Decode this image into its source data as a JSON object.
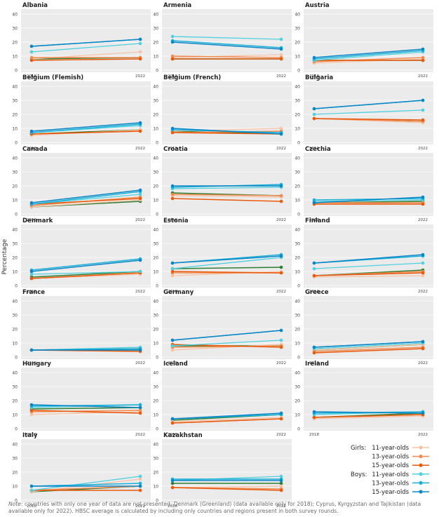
{
  "y_axis_label": "Percentage",
  "note": {
    "label": "Note",
    "text": ": countries with only one year of data are not presented: Denmark (Greenland) (data available only for 2018); Cyprus, Kyrgyzstan and Tajikistan (data available only for 2022). HBSC average is calculated by including only countries and regions present in both survey rounds."
  },
  "legend": [
    {
      "key": "g11",
      "prefix": "Girls:",
      "label": "11-year-olds",
      "color": "#f7c3a6"
    },
    {
      "key": "g13",
      "prefix": "",
      "label": "13-year-olds",
      "color": "#f28c52"
    },
    {
      "key": "g15",
      "prefix": "",
      "label": "15-year-olds",
      "color": "#e8590c"
    },
    {
      "key": "b11",
      "prefix": "Boys:",
      "label": "11-year-olds",
      "color": "#4fd0e0"
    },
    {
      "key": "b13",
      "prefix": "",
      "label": "13-year-olds",
      "color": "#18b0d8"
    },
    {
      "key": "b15",
      "prefix": "",
      "label": "15-year-olds",
      "color": "#0a86c6"
    }
  ],
  "avg_color": "#2e7d32",
  "chart_data": {
    "type": "line",
    "layout": "small multiples by country",
    "x": [
      "2018",
      "2022"
    ],
    "ylim": [
      0,
      40
    ],
    "yticks": [
      0,
      10,
      20,
      30,
      40
    ],
    "ylabel": "Percentage",
    "grid": true,
    "legend_position": "bottom-right",
    "panels": [
      {
        "title": "Albania",
        "series": {
          "g11": [
            8,
            13
          ],
          "g13": [
            9,
            9
          ],
          "g15": [
            7,
            8
          ],
          "b11": [
            13,
            19
          ],
          "b13": [
            17,
            22
          ],
          "b15": [
            17,
            22
          ],
          "avg": [
            8,
            9
          ]
        }
      },
      {
        "title": "Armenia",
        "series": {
          "g11": [
            9,
            11
          ],
          "g13": [
            10,
            9
          ],
          "g15": [
            8,
            8
          ],
          "b11": [
            24,
            22
          ],
          "b13": [
            21,
            16
          ],
          "b15": [
            20,
            15
          ],
          "avg": [
            8,
            8
          ]
        }
      },
      {
        "title": "Austria",
        "series": {
          "g11": [
            5,
            8
          ],
          "g13": [
            6,
            9
          ],
          "g15": [
            7,
            7
          ],
          "b11": [
            7,
            13
          ],
          "b13": [
            8,
            14
          ],
          "b15": [
            9,
            15
          ],
          "avg": [
            7,
            7
          ]
        }
      },
      {
        "title": "Belgium (Flemish)",
        "series": {
          "g11": [
            5,
            9
          ],
          "g13": [
            6,
            8
          ],
          "g15": [
            6,
            8
          ],
          "b11": [
            7,
            12
          ],
          "b13": [
            7,
            13
          ],
          "b15": [
            8,
            14
          ],
          "avg": [
            6,
            9
          ]
        }
      },
      {
        "title": "Belgium (French)",
        "series": {
          "g11": [
            8,
            10
          ],
          "g13": [
            7,
            8
          ],
          "g15": [
            7,
            6
          ],
          "b11": [
            9,
            7
          ],
          "b13": [
            9,
            7
          ],
          "b15": [
            10,
            6
          ],
          "avg": [
            8,
            6
          ]
        }
      },
      {
        "title": "Bulgaria",
        "series": {
          "g11": [
            17,
            14
          ],
          "g13": [
            17,
            15
          ],
          "g15": [
            17,
            16
          ],
          "b11": [
            20,
            23
          ],
          "b13": [
            24,
            30
          ],
          "b15": [
            24,
            30
          ],
          "avg": [
            17,
            15
          ]
        }
      },
      {
        "title": "Canada",
        "series": {
          "g11": [
            5,
            10
          ],
          "g13": [
            6,
            12
          ],
          "g15": [
            7,
            11
          ],
          "b11": [
            7,
            14
          ],
          "b13": [
            7,
            16
          ],
          "b15": [
            8,
            17
          ],
          "avg": [
            5,
            9
          ]
        }
      },
      {
        "title": "Croatia",
        "series": {
          "g11": [
            13,
            12
          ],
          "g13": [
            14,
            13
          ],
          "g15": [
            11,
            9
          ],
          "b11": [
            18,
            19
          ],
          "b13": [
            19,
            21
          ],
          "b15": [
            20,
            20
          ],
          "avg": [
            15,
            13
          ]
        }
      },
      {
        "title": "Czechia",
        "series": {
          "g11": [
            7,
            8
          ],
          "g13": [
            8,
            8
          ],
          "g15": [
            7,
            7
          ],
          "b11": [
            9,
            10
          ],
          "b13": [
            10,
            11
          ],
          "b15": [
            8,
            12
          ],
          "avg": [
            8,
            9
          ]
        }
      },
      {
        "title": "Denmark",
        "series": {
          "g11": [
            5,
            8
          ],
          "g13": [
            5,
            9
          ],
          "g15": [
            5,
            9
          ],
          "b11": [
            8,
            10
          ],
          "b13": [
            11,
            19
          ],
          "b15": [
            10,
            18
          ],
          "avg": [
            6,
            10
          ]
        }
      },
      {
        "title": "Estonia",
        "series": {
          "g11": [
            7,
            10
          ],
          "g13": [
            9,
            9
          ],
          "g15": [
            10,
            9
          ],
          "b11": [
            12,
            20
          ],
          "b13": [
            16,
            22
          ],
          "b15": [
            16,
            21
          ],
          "avg": [
            12,
            13
          ]
        }
      },
      {
        "title": "Finland",
        "series": {
          "g11": [
            6,
            7
          ],
          "g13": [
            7,
            10
          ],
          "g15": [
            7,
            9
          ],
          "b11": [
            12,
            16
          ],
          "b13": [
            16,
            21
          ],
          "b15": [
            16,
            22
          ],
          "avg": [
            7,
            11
          ]
        }
      },
      {
        "title": "France",
        "series": {
          "g11": [
            5,
            7
          ],
          "g13": [
            5,
            6
          ],
          "g15": [
            5,
            4
          ],
          "b11": [
            5,
            7
          ],
          "b13": [
            5,
            6
          ],
          "b15": [
            5,
            5
          ],
          "avg": [
            5,
            5
          ]
        }
      },
      {
        "title": "Germany",
        "series": {
          "g11": [
            5,
            9
          ],
          "g13": [
            7,
            8
          ],
          "g15": [
            9,
            7
          ],
          "b11": [
            8,
            12
          ],
          "b13": [
            12,
            19
          ],
          "b15": [
            12,
            19
          ],
          "avg": [
            8,
            8
          ]
        }
      },
      {
        "title": "Greece",
        "series": {
          "g11": [
            5,
            9
          ],
          "g13": [
            4,
            7
          ],
          "g15": [
            3,
            6
          ],
          "b11": [
            6,
            10
          ],
          "b13": [
            7,
            11
          ],
          "b15": [
            7,
            11
          ],
          "avg": [
            5,
            9
          ]
        }
      },
      {
        "title": "Hungary",
        "series": {
          "g11": [
            10,
            12
          ],
          "g13": [
            12,
            13
          ],
          "g15": [
            13,
            11
          ],
          "b11": [
            15,
            17
          ],
          "b13": [
            16,
            17
          ],
          "b15": [
            17,
            15
          ],
          "avg": [
            14,
            15
          ]
        }
      },
      {
        "title": "Iceland",
        "series": {
          "g11": [
            5,
            8
          ],
          "g13": [
            4,
            7
          ],
          "g15": [
            4,
            7
          ],
          "b11": [
            7,
            10
          ],
          "b13": [
            7,
            10
          ],
          "b15": [
            7,
            11
          ],
          "avg": [
            6,
            10
          ]
        }
      },
      {
        "title": "Ireland",
        "series": {
          "g11": [
            7,
            9
          ],
          "g13": [
            8,
            10
          ],
          "g15": [
            8,
            10
          ],
          "b11": [
            10,
            12
          ],
          "b13": [
            11,
            12
          ],
          "b15": [
            12,
            11
          ],
          "avg": [
            8,
            11
          ]
        }
      },
      {
        "title": "Italy",
        "series": {
          "g11": [
            6,
            15
          ],
          "g13": [
            7,
            10
          ],
          "g15": [
            7,
            7
          ],
          "b11": [
            7,
            17
          ],
          "b13": [
            10,
            12
          ],
          "b15": [
            10,
            10
          ],
          "avg": [
            6,
            10
          ]
        }
      },
      {
        "title": "Kazakhstan",
        "series": {
          "g11": [
            9,
            10
          ],
          "g13": [
            9,
            8
          ],
          "g15": [
            9,
            7
          ],
          "b11": [
            14,
            17
          ],
          "b13": [
            15,
            15
          ],
          "b15": [
            14,
            14
          ],
          "avg": [
            12,
            12
          ]
        }
      }
    ]
  }
}
